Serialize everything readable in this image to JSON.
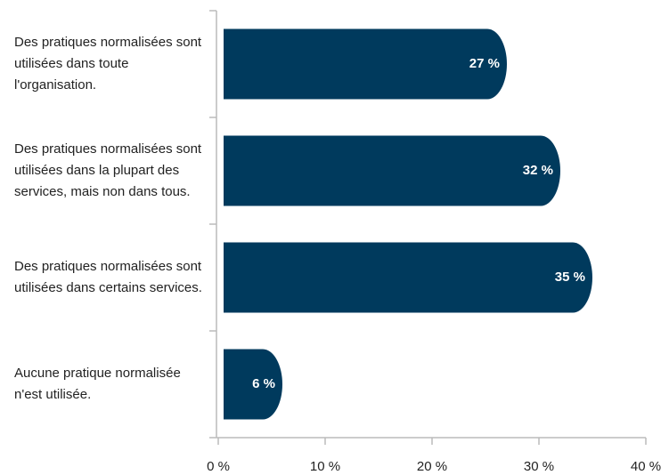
{
  "chart_data": {
    "type": "bar",
    "orientation": "horizontal",
    "categories": [
      "Des pratiques normalisées sont utilisées dans toute l'organisation.",
      "Des pratiques normalisées sont utilisées dans la plupart des services, mais non dans tous.",
      "Des pratiques normalisées sont utilisées dans certains services.",
      "Aucune pratique normalisée n'est utilisée."
    ],
    "values": [
      27,
      32,
      35,
      6
    ],
    "value_labels": [
      "27 %",
      "32 %",
      "35 %",
      "6 %"
    ],
    "color": "#003a5d",
    "xlim": [
      0,
      40
    ],
    "xticks": [
      {
        "value": 0,
        "label": "0 %"
      },
      {
        "value": 10,
        "label": "10 %"
      },
      {
        "value": 20,
        "label": "20 %"
      },
      {
        "value": 30,
        "label": "30 %"
      },
      {
        "value": 40,
        "label": "40 %"
      }
    ]
  }
}
